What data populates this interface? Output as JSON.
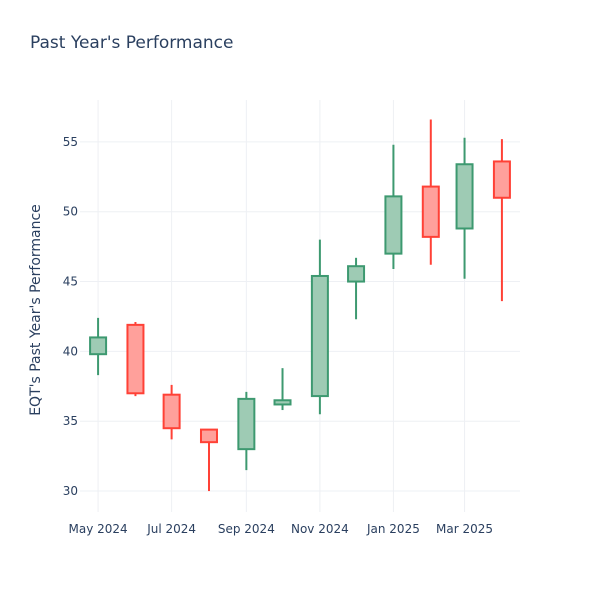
{
  "chart_data": {
    "type": "candlestick",
    "title": "Past Year's Performance",
    "xlabel": "",
    "ylabel": "EQT's Past Year's Performance",
    "ylim": [
      28.5,
      58
    ],
    "yticks": [
      30,
      35,
      40,
      45,
      50,
      55
    ],
    "xticks": [
      {
        "label": "May 2024",
        "date": "2024-05-01"
      },
      {
        "label": "Jul 2024",
        "date": "2024-07-01"
      },
      {
        "label": "Sep 2024",
        "date": "2024-09-01"
      },
      {
        "label": "Nov 2024",
        "date": "2024-11-01"
      },
      {
        "label": "Jan 2025",
        "date": "2025-01-01"
      },
      {
        "label": "Mar 2025",
        "date": "2025-03-01"
      }
    ],
    "x": [
      "2024-05-01",
      "2024-06-01",
      "2024-07-01",
      "2024-08-01",
      "2024-09-01",
      "2024-10-01",
      "2024-11-01",
      "2024-12-01",
      "2025-01-01",
      "2025-02-01",
      "2025-03-01",
      "2025-04-01"
    ],
    "open": [
      39.8,
      41.9,
      36.9,
      34.4,
      33.0,
      36.2,
      36.8,
      45.0,
      47.0,
      51.8,
      48.8,
      53.6
    ],
    "high": [
      42.4,
      42.1,
      37.6,
      34.4,
      37.1,
      38.8,
      48.0,
      46.7,
      54.8,
      56.6,
      55.3,
      55.2
    ],
    "low": [
      38.3,
      36.8,
      33.7,
      30.0,
      31.5,
      35.8,
      35.5,
      42.3,
      45.9,
      46.2,
      45.2,
      43.6
    ],
    "close": [
      41.0,
      37.0,
      34.5,
      33.5,
      36.6,
      36.5,
      45.4,
      46.1,
      51.1,
      48.2,
      53.4,
      51.0
    ],
    "colors": {
      "increasing_line": "#3d9970",
      "increasing_fill": "#9ecbb4",
      "decreasing_line": "#ff4136",
      "decreasing_fill": "#ffa09b"
    },
    "grid": true
  }
}
